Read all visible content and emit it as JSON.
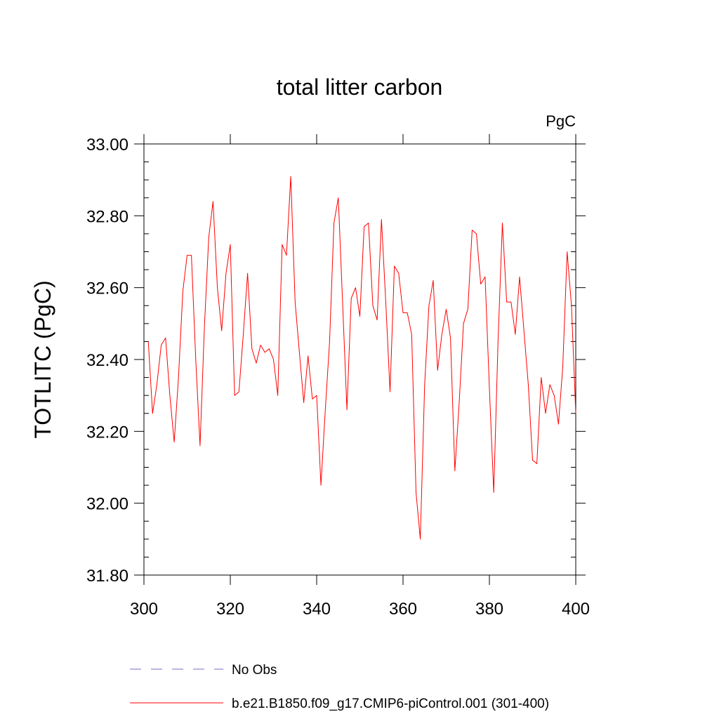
{
  "chart_data": {
    "type": "line",
    "title": "total litter carbon",
    "units_label": "PgC",
    "ylabel": "TOTLITC  (PgC)",
    "xlabel": "",
    "xlim": [
      300,
      400
    ],
    "ylim": [
      31.8,
      33.0
    ],
    "x_ticks": [
      300,
      320,
      340,
      360,
      380,
      400
    ],
    "x_tick_labels": [
      "300",
      "320",
      "340",
      "360",
      "380",
      "400"
    ],
    "y_ticks": [
      31.8,
      32.0,
      32.2,
      32.4,
      32.6,
      32.8,
      33.0
    ],
    "y_tick_labels": [
      "31.80",
      "32.00",
      "32.20",
      "32.40",
      "32.60",
      "32.80",
      "33.00"
    ],
    "grid": false,
    "legend_position": "bottom",
    "series": [
      {
        "name": "No Obs",
        "color": "#7b68c8",
        "dash": "dashed",
        "x": [],
        "y": []
      },
      {
        "name": "b.e21.B1850.f09_g17.CMIP6-piControl.001 (301-400)",
        "color": "#ff0000",
        "dash": "solid",
        "x": [
          301,
          302,
          303,
          304,
          305,
          306,
          307,
          308,
          309,
          310,
          311,
          312,
          313,
          314,
          315,
          316,
          317,
          318,
          319,
          320,
          321,
          322,
          323,
          324,
          325,
          326,
          327,
          328,
          329,
          330,
          331,
          332,
          333,
          334,
          335,
          336,
          337,
          338,
          339,
          340,
          341,
          342,
          343,
          344,
          345,
          346,
          347,
          348,
          349,
          350,
          351,
          352,
          353,
          354,
          355,
          356,
          357,
          358,
          359,
          360,
          361,
          362,
          363,
          364,
          365,
          366,
          367,
          368,
          369,
          370,
          371,
          372,
          373,
          374,
          375,
          376,
          377,
          378,
          379,
          380,
          381,
          382,
          383,
          384,
          385,
          386,
          387,
          388,
          389,
          390,
          391,
          392,
          393,
          394,
          395,
          396,
          397,
          398,
          399,
          400
        ],
        "y": [
          32.45,
          32.25,
          32.33,
          32.44,
          32.46,
          32.3,
          32.17,
          32.35,
          32.59,
          32.69,
          32.69,
          32.4,
          32.16,
          32.49,
          32.74,
          32.84,
          32.6,
          32.48,
          32.64,
          32.72,
          32.3,
          32.31,
          32.47,
          32.64,
          32.43,
          32.39,
          32.44,
          32.42,
          32.43,
          32.4,
          32.3,
          32.72,
          32.69,
          32.91,
          32.56,
          32.42,
          32.28,
          32.41,
          32.29,
          32.3,
          32.05,
          32.26,
          32.45,
          32.78,
          32.85,
          32.56,
          32.26,
          32.57,
          32.6,
          32.52,
          32.77,
          32.78,
          32.55,
          32.51,
          32.79,
          32.56,
          32.31,
          32.66,
          32.64,
          32.53,
          32.53,
          32.47,
          32.03,
          31.9,
          32.33,
          32.55,
          32.62,
          32.37,
          32.47,
          32.54,
          32.46,
          32.09,
          32.28,
          32.5,
          32.54,
          32.76,
          32.75,
          32.61,
          32.63,
          32.32,
          32.03,
          32.45,
          32.78,
          32.56,
          32.56,
          32.47,
          32.63,
          32.48,
          32.33,
          32.12,
          32.11,
          32.35,
          32.25,
          32.33,
          32.3,
          32.22,
          32.38,
          32.7,
          32.55,
          32.25
        ]
      }
    ]
  }
}
